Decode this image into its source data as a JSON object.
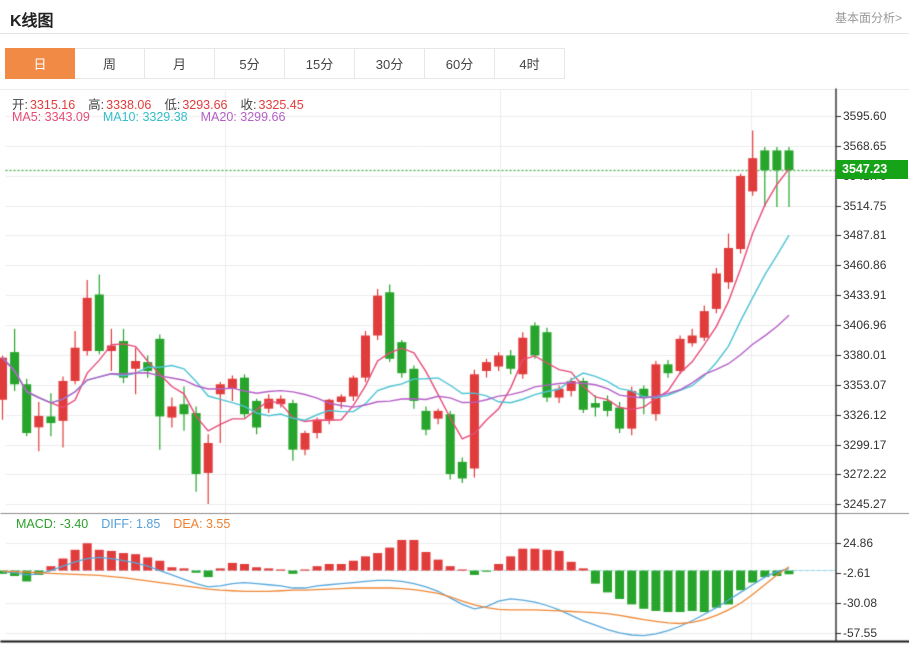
{
  "header": {
    "title": "K线图",
    "link_label": "基本面分析>"
  },
  "tabs": {
    "items": [
      "日",
      "周",
      "月",
      "5分",
      "15分",
      "30分",
      "60分",
      "4时"
    ],
    "active_index": 0,
    "active_color": "#f08a44"
  },
  "ohlc_legend": {
    "value_color": "#e23c3c",
    "items": [
      {
        "label": "开:",
        "value": "3315.16"
      },
      {
        "label": "高:",
        "value": "3338.06"
      },
      {
        "label": "低:",
        "value": "3293.66"
      },
      {
        "label": "收:",
        "value": "3325.45"
      }
    ]
  },
  "ma_legend": {
    "items": [
      {
        "text": "MA5: 3343.09",
        "color": "#e74c78"
      },
      {
        "text": "MA10: 3329.38",
        "color": "#33bfc9"
      },
      {
        "text": "MA20: 3299.66",
        "color": "#b55fc6"
      }
    ]
  },
  "macd_legend": {
    "items": [
      {
        "text": "MACD: -3.40",
        "color": "#2ba02b"
      },
      {
        "text": "DIFF: 1.85",
        "color": "#55a0d8"
      },
      {
        "text": "DEA: 3.55",
        "color": "#ef7f2e"
      }
    ]
  },
  "axis": {
    "main_labels": [
      "3595.60",
      "3568.65",
      "3541.70",
      "3514.75",
      "3487.81",
      "3460.86",
      "3433.91",
      "3406.96",
      "3380.01",
      "3353.07",
      "3326.12",
      "3299.17",
      "3272.22",
      "3245.27"
    ],
    "macd_labels": [
      "24.86",
      "-2.61",
      "-30.08",
      "-57.55"
    ],
    "current_price_label": "3547.23"
  },
  "chart_data": {
    "type": "candlestick",
    "title": "K线图 日K with MA5/MA10/MA20 and MACD",
    "price_axis": {
      "min": 3245.27,
      "max": 3595.6,
      "step": 26.95,
      "grid": true
    },
    "macd_axis": {
      "labels": [
        24.86,
        -2.61,
        -30.08,
        -57.55
      ],
      "step": 27.47
    },
    "current_price": 3547.23,
    "up_means": "close>open shown red (CN convention), down shown green",
    "candles": [
      [
        3340,
        3380,
        3322,
        3378
      ],
      [
        3383,
        3404,
        3348,
        3354
      ],
      [
        3354,
        3359,
        3307,
        3310
      ],
      [
        3315.16,
        3338.06,
        3293.66,
        3325.45
      ],
      [
        3325,
        3346,
        3307,
        3319
      ],
      [
        3321,
        3361,
        3297,
        3357
      ],
      [
        3357,
        3402,
        3354,
        3387
      ],
      [
        3384,
        3448,
        3380,
        3432
      ],
      [
        3435,
        3453,
        3381,
        3384
      ],
      [
        3384,
        3404,
        3366,
        3389
      ],
      [
        3393,
        3404,
        3355,
        3360
      ],
      [
        3368,
        3387,
        3345,
        3375
      ],
      [
        3374,
        3380,
        3360,
        3366
      ],
      [
        3395,
        3399,
        3295,
        3325
      ],
      [
        3324,
        3342,
        3315,
        3334
      ],
      [
        3336,
        3352,
        3312,
        3327
      ],
      [
        3328,
        3334,
        3257,
        3273
      ],
      [
        3274,
        3309,
        3246,
        3301
      ],
      [
        3345,
        3356,
        3301,
        3354
      ],
      [
        3350,
        3362,
        3339,
        3359
      ],
      [
        3360,
        3363,
        3324,
        3327
      ],
      [
        3339,
        3341,
        3309,
        3315
      ],
      [
        3332,
        3345,
        3328,
        3341
      ],
      [
        3336,
        3344,
        3333,
        3341
      ],
      [
        3337,
        3340,
        3285,
        3295
      ],
      [
        3295,
        3312,
        3290,
        3310
      ],
      [
        3310,
        3324,
        3305,
        3322
      ],
      [
        3322,
        3341,
        3318,
        3340
      ],
      [
        3338,
        3345,
        3332,
        3343
      ],
      [
        3343,
        3362,
        3339,
        3360
      ],
      [
        3360,
        3402,
        3356,
        3398
      ],
      [
        3398,
        3440,
        3394,
        3434
      ],
      [
        3437,
        3444,
        3374,
        3377
      ],
      [
        3392,
        3394,
        3360,
        3364
      ],
      [
        3368,
        3371,
        3332,
        3339
      ],
      [
        3330,
        3334,
        3308,
        3313
      ],
      [
        3323,
        3332,
        3318,
        3330
      ],
      [
        3327,
        3330,
        3268,
        3273
      ],
      [
        3284,
        3288,
        3265,
        3269
      ],
      [
        3278,
        3367,
        3270,
        3363
      ],
      [
        3366,
        3377,
        3360,
        3374
      ],
      [
        3370,
        3383,
        3366,
        3380
      ],
      [
        3380,
        3385,
        3363,
        3368
      ],
      [
        3363,
        3401,
        3359,
        3396
      ],
      [
        3407,
        3410,
        3377,
        3380
      ],
      [
        3401,
        3405,
        3338,
        3342
      ],
      [
        3342,
        3353,
        3337,
        3350
      ],
      [
        3348,
        3360,
        3343,
        3357
      ],
      [
        3357,
        3360,
        3328,
        3331
      ],
      [
        3337,
        3344,
        3325,
        3333
      ],
      [
        3339,
        3344,
        3325,
        3330
      ],
      [
        3333,
        3338,
        3310,
        3314
      ],
      [
        3314,
        3352,
        3308,
        3348
      ],
      [
        3350,
        3353,
        3327,
        3342
      ],
      [
        3327,
        3375,
        3321,
        3372
      ],
      [
        3372,
        3376,
        3360,
        3364
      ],
      [
        3366,
        3398,
        3363,
        3395
      ],
      [
        3391,
        3404,
        3388,
        3398
      ],
      [
        3396,
        3425,
        3393,
        3420
      ],
      [
        3422,
        3459,
        3418,
        3454
      ],
      [
        3446,
        3490,
        3440,
        3477
      ],
      [
        3476,
        3544,
        3472,
        3542
      ],
      [
        3528,
        3583,
        3524,
        3558
      ],
      [
        3565,
        3568,
        3514,
        3547.23
      ],
      [
        3565,
        3568,
        3514,
        3547.23
      ],
      [
        3565,
        3568,
        3514,
        3547.23
      ]
    ],
    "ma_periods": [
      5,
      10,
      20
    ],
    "macd": {
      "hist": [
        -3,
        -5,
        -10,
        -4,
        4,
        11,
        19,
        25,
        19,
        18,
        16,
        15,
        12,
        9,
        3,
        2,
        -2,
        -6,
        2,
        7,
        6,
        3,
        2,
        1,
        -3,
        1,
        4,
        6,
        6,
        9,
        13,
        16,
        21,
        28,
        28,
        17,
        10,
        4,
        1,
        -4,
        -1,
        6,
        13,
        20,
        20,
        19,
        18,
        8,
        2,
        -12,
        -20,
        -26,
        -31,
        -35,
        -37,
        -38,
        -38,
        -37,
        -38,
        -34,
        -31,
        -18,
        -11,
        -6,
        -5,
        -3.4
      ],
      "diff": [
        -1,
        -2,
        -4,
        -3,
        0,
        4,
        8,
        11,
        12,
        11,
        9,
        7,
        4,
        0,
        -4,
        -8,
        -12,
        -15,
        -14,
        -12,
        -11,
        -12,
        -13,
        -14,
        -16,
        -16,
        -14,
        -13,
        -12,
        -11,
        -10,
        -9,
        -9,
        -10,
        -12,
        -15,
        -19,
        -25,
        -31,
        -35,
        -33,
        -28,
        -26,
        -27,
        -29,
        -32,
        -36,
        -41,
        -46,
        -50,
        -54,
        -57,
        -59,
        -59.5,
        -58,
        -55,
        -51,
        -46,
        -40,
        -34,
        -27,
        -20,
        -13,
        -6,
        -1,
        1.85
      ],
      "dea": [
        -0.5,
        -1,
        -1.5,
        -2,
        -2.5,
        -3,
        -3.5,
        -4,
        -4.5,
        -5.5,
        -6.5,
        -8,
        -9.5,
        -11,
        -12.5,
        -14,
        -15.5,
        -17,
        -18,
        -18.5,
        -19,
        -19,
        -19,
        -18.5,
        -18,
        -18,
        -17.5,
        -17,
        -16.5,
        -16,
        -16,
        -16,
        -16,
        -16.5,
        -17.5,
        -19,
        -21,
        -24,
        -28,
        -31.5,
        -34,
        -35.5,
        -36,
        -36,
        -36,
        -36.5,
        -37,
        -37.5,
        -38,
        -38.5,
        -39.5,
        -41,
        -43,
        -45,
        -46.5,
        -48,
        -48.5,
        -47.5,
        -45,
        -41,
        -36,
        -30,
        -22,
        -13,
        -4,
        3.55
      ]
    },
    "colors": {
      "up": "#e13c3c",
      "down": "#27a42b",
      "ma5": "#e74c78",
      "ma10": "#4ec3d4",
      "ma20": "#b55fc6",
      "diff": "#57a7dc",
      "dea": "#ef8836",
      "current_line": "#4fb34f",
      "badge": "#17a317",
      "grid": "#ededed",
      "axis": "#2a2a2a"
    }
  }
}
